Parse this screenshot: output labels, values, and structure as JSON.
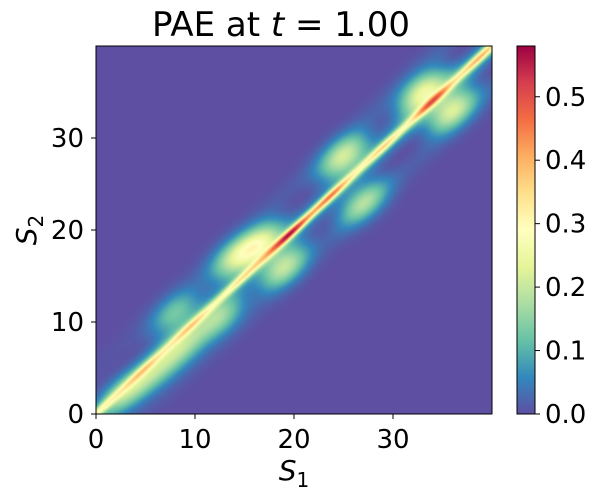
{
  "chart_data": {
    "type": "heatmap",
    "title": {
      "prefix": "PAE at ",
      "var": "t",
      "suffix": " = 1.00"
    },
    "xlabel": {
      "base": "S",
      "sub": "1"
    },
    "ylabel": {
      "base": "S",
      "sub": "2"
    },
    "xlim": [
      0,
      40
    ],
    "ylim": [
      0,
      40
    ],
    "x_ticks": [
      0,
      10,
      20,
      30
    ],
    "y_ticks": [
      0,
      10,
      20,
      30
    ],
    "colorbar": {
      "range": [
        0,
        0.58
      ],
      "ticks": [
        0.0,
        0.1,
        0.2,
        0.3,
        0.4,
        0.5
      ],
      "tick_labels": [
        "0.0",
        "0.1",
        "0.2",
        "0.3",
        "0.4",
        "0.5"
      ],
      "colormap": "Spectral_r",
      "colors": [
        "#5e4fa2",
        "#3288bd",
        "#66c2a5",
        "#abdda4",
        "#e6f598",
        "#ffffbf",
        "#fee08b",
        "#fdae61",
        "#f46d43",
        "#d53e4f",
        "#9e0142"
      ]
    },
    "features": {
      "diagonal_peak": 0.58,
      "diagonal_peak_at": [
        21,
        21
      ],
      "off_diagonal_lobes": [
        {
          "s1": 2,
          "s2": 1.5,
          "value": 0.12
        },
        {
          "s1": 4,
          "s2": 3,
          "value": 0.14
        },
        {
          "s1": 6.5,
          "s2": 5,
          "value": 0.15
        },
        {
          "s1": 9,
          "s2": 7.5,
          "value": 0.18
        },
        {
          "s1": 12.5,
          "s2": 10.5,
          "value": 0.2
        },
        {
          "s1": 16.5,
          "s2": 18.5,
          "value": 0.28
        },
        {
          "s1": 19,
          "s2": 16,
          "value": 0.25
        },
        {
          "s1": 25,
          "s2": 28,
          "value": 0.27
        },
        {
          "s1": 27,
          "s2": 23,
          "value": 0.22
        },
        {
          "s1": 33,
          "s2": 35,
          "value": 0.3
        },
        {
          "s1": 36,
          "s2": 33,
          "value": 0.28
        },
        {
          "s1": 8,
          "s2": 11,
          "value": 0.16
        },
        {
          "s1": 14,
          "s2": 17,
          "value": 0.22
        }
      ]
    }
  }
}
